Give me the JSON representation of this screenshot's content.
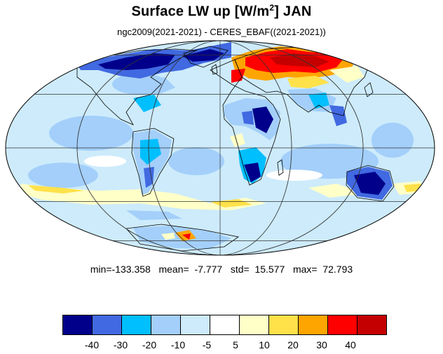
{
  "title": {
    "main": "Surface LW up [W/m",
    "superscript": "2",
    "suffix": "]  JAN"
  },
  "subtitle": "ngc2009(2021-2021) - CERES_EBAF((2021-2021))",
  "stats": {
    "text": "min=-133.358   mean=  -7.777   std=  15.577   max=  72.793"
  },
  "colorbar": {
    "colors": [
      "#00008b",
      "#4169e1",
      "#00bfff",
      "#a3cffa",
      "#cdebfb",
      "#ffffff",
      "#ffffc8",
      "#ffe14a",
      "#ffa500",
      "#ff0000",
      "#c50000"
    ],
    "tick_labels": [
      "-40",
      "-30",
      "-20",
      "-10",
      "-5",
      "5",
      "10",
      "20",
      "30",
      "40"
    ]
  },
  "map_colors": {
    "ocean_base": "#cdebfb",
    "deep_blue": "#00008b",
    "blue": "#4169e1",
    "cyan": "#00bfff",
    "light_blue": "#a3cffa",
    "pale_yellow": "#ffffc8",
    "yellow": "#ffe14a",
    "orange": "#ffa500",
    "red": "#ff0000",
    "dark_red": "#c50000",
    "grid": "#333333",
    "coast": "#000000"
  }
}
